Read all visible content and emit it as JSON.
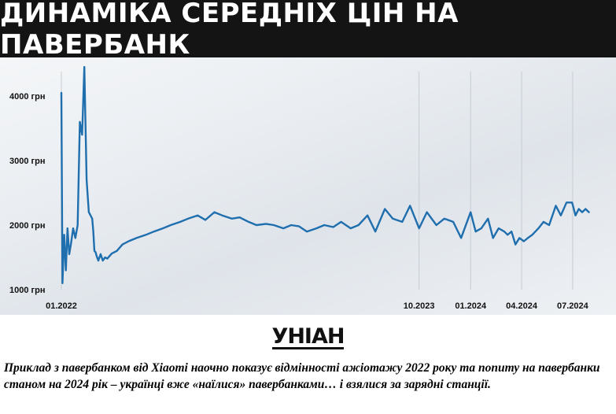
{
  "title": "ДИНАМІКА СЕРЕДНІХ ЦІН НА ПАВЕРБАНК",
  "logo": "УНІАН",
  "caption": "Приклад з павербанком від Xiaomi наочно показує відмінності ажіотажу 2022 року та попиту на павербанки станом на 2024 рік – українці вже «наїлися» павербанками… і взялися за зарядні станції.",
  "colors": {
    "line": "#1f6eae",
    "header_bg": "#141414"
  },
  "chart_data": {
    "type": "line",
    "title": "ДИНАМІКА СЕРЕДНІХ ЦІН НА ПАВЕРБАНК",
    "xlabel": "",
    "ylabel": "",
    "ylim": [
      1000,
      4500
    ],
    "yticks": [
      1000,
      2000,
      3000,
      4000
    ],
    "ytick_labels": [
      "1000 грн",
      "2000 грн",
      "3000 грн",
      "4000 грн"
    ],
    "xticks": [
      "2022-01",
      "2023-10",
      "2024-01",
      "2024-04",
      "2024-07"
    ],
    "xtick_labels": [
      "01.2022",
      "10.2023",
      "01.2024",
      "04.2024",
      "07.2024"
    ],
    "grid": "vertical",
    "series": [
      {
        "x": [
          "2022-01-01",
          "2022-01-03",
          "2022-01-06",
          "2022-01-09",
          "2022-01-12",
          "2022-01-15",
          "2022-01-18",
          "2022-01-22",
          "2022-01-26",
          "2022-01-30",
          "2022-02-03",
          "2022-02-07",
          "2022-02-11",
          "2022-02-15",
          "2022-02-19",
          "2022-02-22",
          "2022-02-25",
          "2022-02-27",
          "2022-03-01",
          "2022-03-03",
          "2022-03-05",
          "2022-03-08",
          "2022-03-12",
          "2022-03-16",
          "2022-03-20",
          "2022-03-24",
          "2022-04-01",
          "2022-04-10",
          "2022-04-20",
          "2022-05-01",
          "2022-05-15",
          "2022-06-01",
          "2022-06-15",
          "2022-07-01",
          "2022-07-15",
          "2022-08-01",
          "2022-08-15",
          "2022-09-01",
          "2022-09-15",
          "2022-10-01",
          "2022-10-15",
          "2022-11-01",
          "2022-11-15",
          "2022-12-01",
          "2022-12-15",
          "2023-01-01",
          "2023-01-15",
          "2023-02-01",
          "2023-02-15",
          "2023-03-01",
          "2023-03-15",
          "2023-04-01",
          "2023-04-15",
          "2023-05-01",
          "2023-05-15",
          "2023-06-01",
          "2023-06-15",
          "2023-07-01",
          "2023-07-15",
          "2023-08-01",
          "2023-08-15",
          "2023-09-01",
          "2023-09-15",
          "2023-10-01",
          "2023-10-15",
          "2023-11-01",
          "2023-11-15",
          "2023-12-01",
          "2023-12-15",
          "2024-01-01",
          "2024-01-10",
          "2024-01-20",
          "2024-02-01",
          "2024-02-10",
          "2024-02-20",
          "2024-03-01",
          "2024-03-07",
          "2024-03-14",
          "2024-03-21",
          "2024-03-28",
          "2024-04-05",
          "2024-04-12",
          "2024-04-20",
          "2024-05-01",
          "2024-05-10",
          "2024-05-20",
          "2024-06-01",
          "2024-06-10",
          "2024-06-20",
          "2024-06-30",
          "2024-07-06",
          "2024-07-12",
          "2024-07-18",
          "2024-07-24",
          "2024-07-30"
        ],
        "y": [
          4050,
          1100,
          1850,
          1300,
          1950,
          1550,
          1700,
          1950,
          1800,
          2000,
          3600,
          3400,
          4450,
          2700,
          2200,
          2150,
          2100,
          1900,
          1600,
          1580,
          1520,
          1450,
          1550,
          1450,
          1500,
          1480,
          1560,
          1600,
          1700,
          1750,
          1800,
          1850,
          1900,
          1950,
          2000,
          2050,
          2100,
          2150,
          2080,
          2200,
          2150,
          2100,
          2120,
          2050,
          2000,
          2020,
          2000,
          1950,
          2000,
          1980,
          1900,
          1950,
          2000,
          1970,
          2050,
          1950,
          2000,
          2150,
          1900,
          2250,
          2100,
          2050,
          2300,
          1950,
          2200,
          2000,
          2100,
          2050,
          1800,
          2200,
          1900,
          1950,
          2100,
          1800,
          1950,
          1900,
          1850,
          1900,
          1700,
          1800,
          1750,
          1800,
          1850,
          1950,
          2050,
          2000,
          2300,
          2150,
          2350,
          2350,
          2150,
          2250,
          2200,
          2250,
          2200
        ]
      }
    ]
  }
}
